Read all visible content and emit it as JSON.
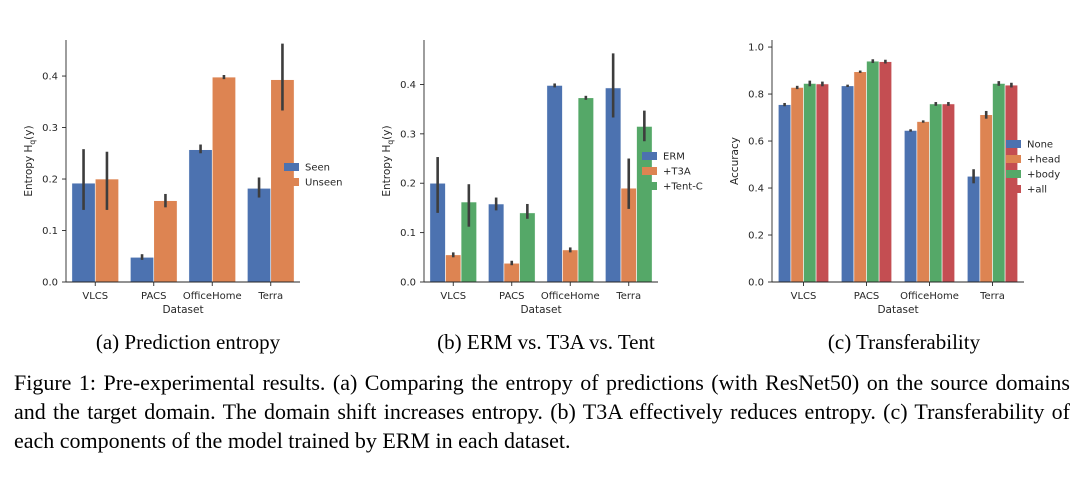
{
  "chart_data": [
    {
      "type": "bar",
      "panel": "a",
      "caption": "(a) Prediction entropy",
      "categories": [
        "VLCS",
        "PACS",
        "OfficeHome",
        "Terra"
      ],
      "xlabel": "Dataset",
      "ylabel": "Entropy H",
      "ylabel_sub": "q",
      "ylabel_tail": "(y)",
      "ylim": [
        0,
        0.47
      ],
      "yticks": [
        0.0,
        0.1,
        0.2,
        0.3,
        0.4
      ],
      "ytick_labels": [
        "0.0",
        "0.1",
        "0.2",
        "0.3",
        "0.4"
      ],
      "legend_position": "center-right",
      "series": [
        {
          "name": "Seen",
          "color": "#4c72b0",
          "values": [
            0.192,
            0.048,
            0.257,
            0.182
          ],
          "err_low": [
            0.14,
            0.043,
            0.25,
            0.164
          ],
          "err_high": [
            0.258,
            0.054,
            0.267,
            0.203
          ]
        },
        {
          "name": "Unseen",
          "color": "#dd8452",
          "values": [
            0.2,
            0.158,
            0.398,
            0.393
          ],
          "err_low": [
            0.14,
            0.145,
            0.394,
            0.333
          ],
          "err_high": [
            0.253,
            0.171,
            0.402,
            0.463
          ]
        }
      ]
    },
    {
      "type": "bar",
      "panel": "b",
      "caption": "(b) ERM vs. T3A vs. Tent",
      "categories": [
        "VLCS",
        "PACS",
        "OfficeHome",
        "Terra"
      ],
      "xlabel": "Dataset",
      "ylabel": "Entropy H",
      "ylabel_sub": "q",
      "ylabel_tail": "(y)",
      "ylim": [
        0,
        0.49
      ],
      "yticks": [
        0.0,
        0.1,
        0.2,
        0.3,
        0.4
      ],
      "ytick_labels": [
        "0.0",
        "0.1",
        "0.2",
        "0.3",
        "0.4"
      ],
      "legend_position": "center-right",
      "series": [
        {
          "name": "ERM",
          "color": "#4c72b0",
          "values": [
            0.2,
            0.158,
            0.398,
            0.393
          ],
          "err_low": [
            0.14,
            0.145,
            0.394,
            0.333
          ],
          "err_high": [
            0.253,
            0.171,
            0.402,
            0.463
          ]
        },
        {
          "name": "+T3A",
          "color": "#dd8452",
          "values": [
            0.055,
            0.038,
            0.065,
            0.19
          ],
          "err_low": [
            0.05,
            0.034,
            0.06,
            0.148
          ],
          "err_high": [
            0.06,
            0.043,
            0.07,
            0.25
          ]
        },
        {
          "name": "+Tent-C",
          "color": "#55a868",
          "values": [
            0.162,
            0.14,
            0.373,
            0.315
          ],
          "err_low": [
            0.112,
            0.128,
            0.369,
            0.285
          ],
          "err_high": [
            0.198,
            0.158,
            0.377,
            0.347
          ]
        }
      ]
    },
    {
      "type": "bar",
      "panel": "c",
      "caption": "(c) Transferability",
      "categories": [
        "VLCS",
        "PACS",
        "OfficeHome",
        "Terra"
      ],
      "xlabel": "Dataset",
      "ylabel": "Accuracy",
      "ylim": [
        0,
        1.03
      ],
      "yticks": [
        0.0,
        0.2,
        0.4,
        0.6,
        0.8,
        1.0
      ],
      "ytick_labels": [
        "0.0",
        "0.2",
        "0.4",
        "0.6",
        "0.8",
        "1.0"
      ],
      "legend_position": "center-right",
      "series": [
        {
          "name": "None",
          "color": "#4c72b0",
          "values": [
            0.755,
            0.835,
            0.645,
            0.45
          ],
          "err_low": [
            0.748,
            0.83,
            0.64,
            0.42
          ],
          "err_high": [
            0.762,
            0.84,
            0.65,
            0.48
          ]
        },
        {
          "name": "+head",
          "color": "#dd8452",
          "values": [
            0.828,
            0.895,
            0.683,
            0.712
          ],
          "err_low": [
            0.821,
            0.89,
            0.678,
            0.695
          ],
          "err_high": [
            0.835,
            0.9,
            0.688,
            0.728
          ]
        },
        {
          "name": "+body",
          "color": "#55a868",
          "values": [
            0.845,
            0.94,
            0.758,
            0.845
          ],
          "err_low": [
            0.833,
            0.932,
            0.75,
            0.835
          ],
          "err_high": [
            0.857,
            0.948,
            0.766,
            0.855
          ]
        },
        {
          "name": "+all",
          "color": "#c44e52",
          "values": [
            0.843,
            0.938,
            0.758,
            0.838
          ],
          "err_low": [
            0.833,
            0.93,
            0.75,
            0.828
          ],
          "err_high": [
            0.853,
            0.946,
            0.766,
            0.848
          ]
        }
      ]
    }
  ],
  "figure_caption": "Figure 1: Pre-experimental results. (a) Comparing the entropy of predictions (with ResNet50) on the source domains and the target domain. The domain shift increases entropy. (b) T3A effectively reduces entropy. (c) Transferability of each components of the model trained by ERM in each dataset."
}
